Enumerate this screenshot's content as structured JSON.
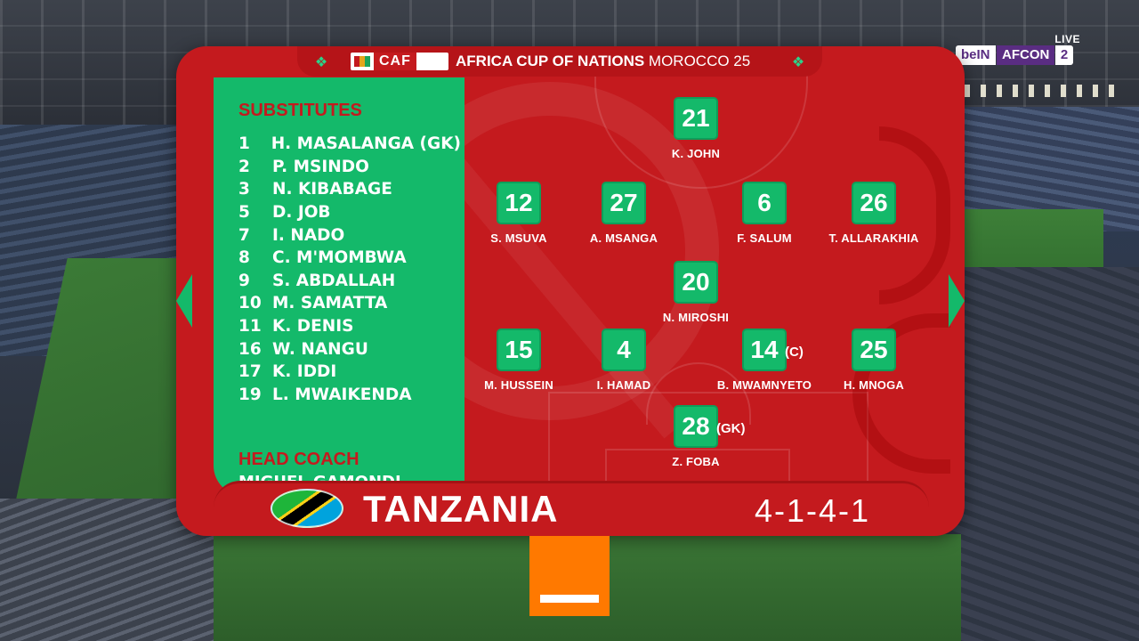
{
  "broadcast": {
    "live_label": "LIVE",
    "brand": "beIN",
    "channel_name": "AFCON",
    "channel_number": "2"
  },
  "header": {
    "organizer": "CAF",
    "tournament": "AFRICA CUP OF NATIONS",
    "host": "MOROCCO 25"
  },
  "substitutes": {
    "title": "SUBSTITUTES",
    "players": [
      {
        "number": "1",
        "name": "H. MASALANGA (GK)"
      },
      {
        "number": "2",
        "name": "P. MSINDO"
      },
      {
        "number": "3",
        "name": "N. KIBABAGE"
      },
      {
        "number": "5",
        "name": "D. JOB"
      },
      {
        "number": "7",
        "name": "I. NADO"
      },
      {
        "number": "8",
        "name": "C. M'MOMBWA"
      },
      {
        "number": "9",
        "name": "S. ABDALLAH"
      },
      {
        "number": "10",
        "name": "M. SAMATTA"
      },
      {
        "number": "11",
        "name": "K. DENIS"
      },
      {
        "number": "16",
        "name": "W. NANGU"
      },
      {
        "number": "17",
        "name": "K. IDDI"
      },
      {
        "number": "19",
        "name": "L. MWAIKENDA"
      }
    ]
  },
  "coach": {
    "title": "HEAD COACH",
    "name": "MIGUEL GAMONDI"
  },
  "lineup": [
    {
      "number": "21",
      "name": "K. JOHN",
      "tag": ""
    },
    {
      "number": "12",
      "name": "S. MSUVA",
      "tag": ""
    },
    {
      "number": "27",
      "name": "A. MSANGA",
      "tag": ""
    },
    {
      "number": "6",
      "name": "F. SALUM",
      "tag": ""
    },
    {
      "number": "26",
      "name": "T. ALLARAKHIA",
      "tag": ""
    },
    {
      "number": "20",
      "name": "N. MIROSHI",
      "tag": ""
    },
    {
      "number": "15",
      "name": "M. HUSSEIN",
      "tag": ""
    },
    {
      "number": "4",
      "name": "I. HAMAD",
      "tag": ""
    },
    {
      "number": "14",
      "name": "B. MWAMNYETO",
      "tag": "(C)"
    },
    {
      "number": "25",
      "name": "H. MNOGA",
      "tag": ""
    },
    {
      "number": "28",
      "name": "Z. FOBA",
      "tag": "(GK)"
    }
  ],
  "team": {
    "name": "TANZANIA",
    "formation": "4-1-4-1"
  },
  "colors": {
    "panel_red": "#c41a1e",
    "accent_green": "#14b96a",
    "sponsor_orange": "#ff7900"
  }
}
